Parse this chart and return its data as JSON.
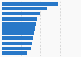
{
  "values": [
    7.2,
    5.8,
    4.9,
    4.6,
    4.4,
    4.3,
    4.2,
    4.1,
    4.0,
    3.8,
    3.2
  ],
  "bar_color": "#2878c8",
  "background_color": "#f9f9f9",
  "xlim": [
    0,
    10
  ],
  "grid_color": "#cccccc",
  "grid_values": [
    2.5,
    5.0,
    7.5,
    10.0
  ]
}
